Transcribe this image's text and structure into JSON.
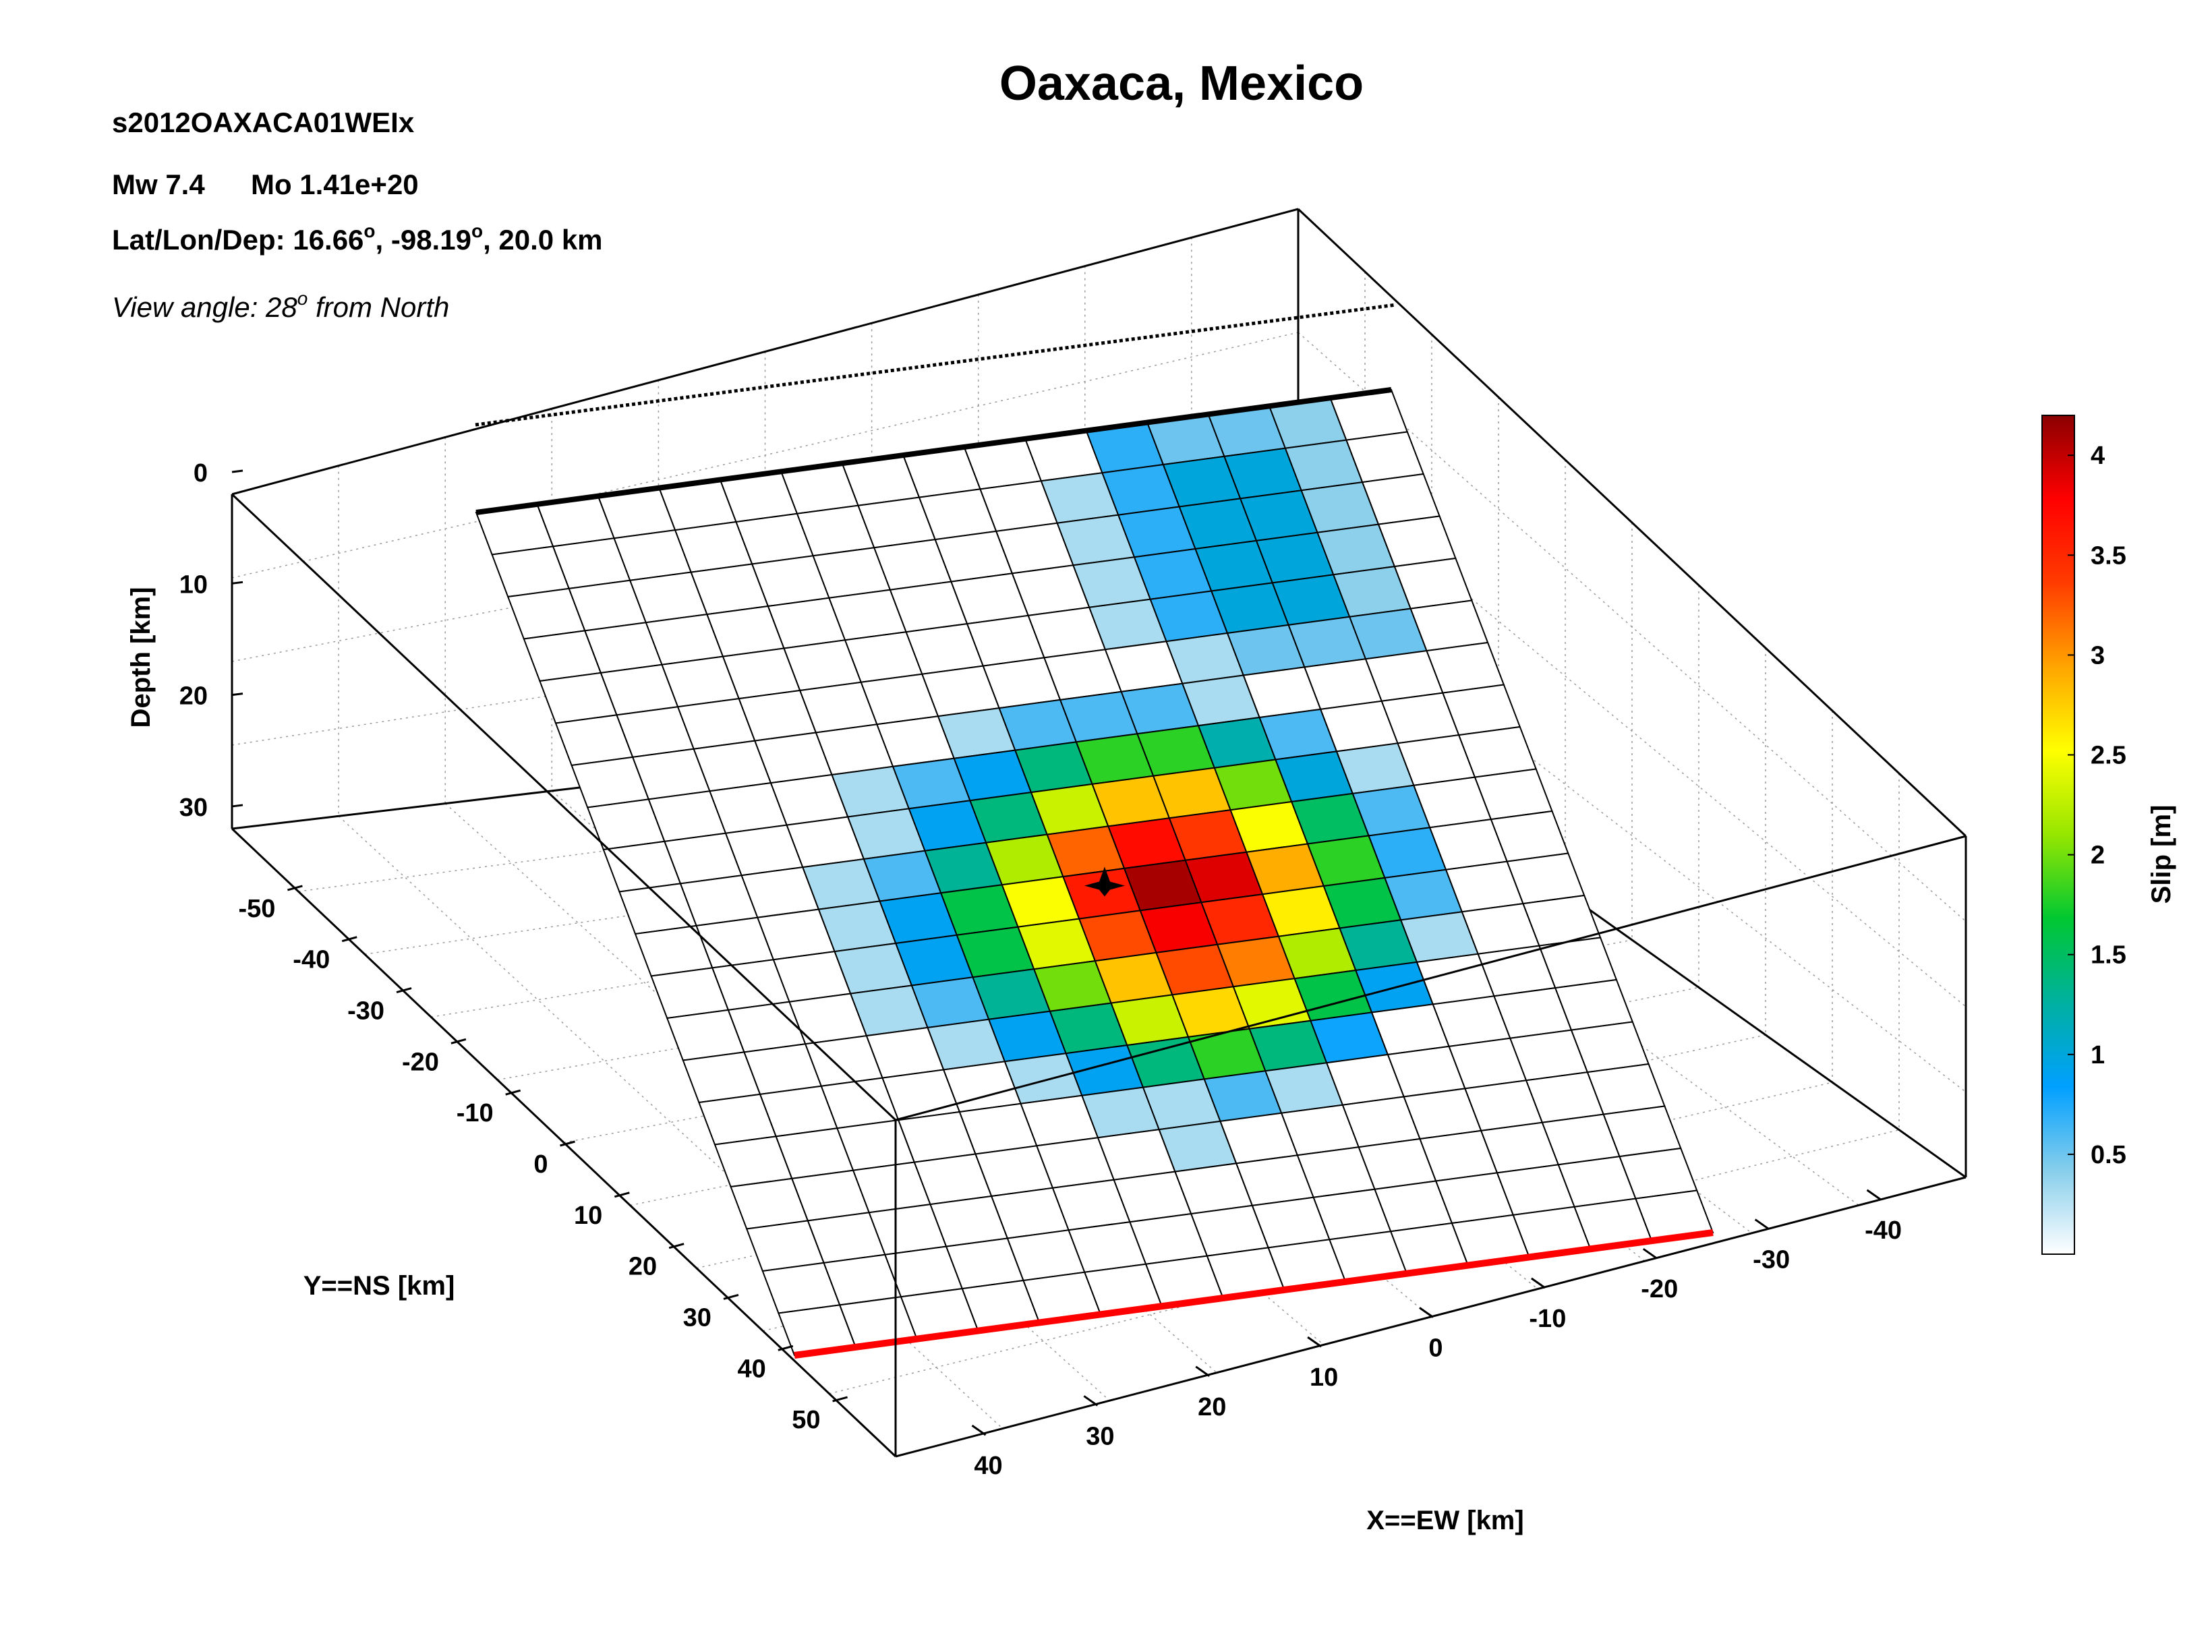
{
  "header": {
    "title": "Oaxaca, Mexico",
    "event_id": "s2012OAXACA01WEIx",
    "mw": "Mw 7.4",
    "mo": "Mo 1.41e+20",
    "location_prefix": "Lat/Lon/Dep: 16.66",
    "location_lon": ", -98.19",
    "location_dep": ", 20.0 km",
    "degree_sup": "o",
    "view_prefix": "View angle:  28",
    "view_suffix": " from North"
  },
  "colors": {
    "top_edge": "#000000",
    "bottom_edge": "#ff0000",
    "hypocenter": "#000000"
  },
  "chart_data": {
    "type": "heatmap",
    "title": "Oaxaca, Mexico",
    "axes": {
      "x": {
        "label": "X==EW [km]",
        "ticks": [
          "40",
          "30",
          "20",
          "10",
          "0",
          "-10",
          "-20",
          "-30",
          "-40"
        ]
      },
      "y": {
        "label": "Y==NS [km]",
        "ticks": [
          "-50",
          "-40",
          "-30",
          "-20",
          "-10",
          "0",
          "10",
          "20",
          "30",
          "40",
          "50"
        ]
      },
      "z": {
        "label": "Depth [km]",
        "ticks": [
          "0",
          "10",
          "20",
          "30"
        ]
      }
    },
    "colorbar": {
      "label": "Slip [m]",
      "range": [
        0,
        4.2
      ],
      "ticks": [
        "0.5",
        "1",
        "1.5",
        "2",
        "2.5",
        "3",
        "3.5",
        "4"
      ],
      "colormap": [
        "#ffffff",
        "#87ceeb",
        "#00a0ff",
        "#00b0a0",
        "#00c832",
        "#96e600",
        "#ffff00",
        "#ffa500",
        "#ff3c00",
        "#ff0000",
        "#8b0000"
      ]
    },
    "grid_size": {
      "strike_cells": 15,
      "dip_cells": 20
    },
    "slip_cells_m": [
      {
        "dip": 0,
        "strike": 10,
        "v": 0.7
      },
      {
        "dip": 0,
        "strike": 11,
        "v": 0.5
      },
      {
        "dip": 0,
        "strike": 12,
        "v": 0.5
      },
      {
        "dip": 0,
        "strike": 13,
        "v": 0.4
      },
      {
        "dip": 1,
        "strike": 9,
        "v": 0.3
      },
      {
        "dip": 1,
        "strike": 10,
        "v": 0.7
      },
      {
        "dip": 1,
        "strike": 11,
        "v": 1.0
      },
      {
        "dip": 1,
        "strike": 12,
        "v": 1.0
      },
      {
        "dip": 1,
        "strike": 13,
        "v": 0.4
      },
      {
        "dip": 2,
        "strike": 9,
        "v": 0.3
      },
      {
        "dip": 2,
        "strike": 10,
        "v": 0.7
      },
      {
        "dip": 2,
        "strike": 11,
        "v": 1.0
      },
      {
        "dip": 2,
        "strike": 12,
        "v": 1.0
      },
      {
        "dip": 2,
        "strike": 13,
        "v": 0.4
      },
      {
        "dip": 3,
        "strike": 9,
        "v": 0.3
      },
      {
        "dip": 3,
        "strike": 10,
        "v": 0.7
      },
      {
        "dip": 3,
        "strike": 11,
        "v": 1.0
      },
      {
        "dip": 3,
        "strike": 12,
        "v": 1.0
      },
      {
        "dip": 3,
        "strike": 13,
        "v": 0.4
      },
      {
        "dip": 4,
        "strike": 9,
        "v": 0.3
      },
      {
        "dip": 4,
        "strike": 10,
        "v": 0.7
      },
      {
        "dip": 4,
        "strike": 11,
        "v": 1.0
      },
      {
        "dip": 4,
        "strike": 12,
        "v": 1.0
      },
      {
        "dip": 4,
        "strike": 13,
        "v": 0.4
      },
      {
        "dip": 5,
        "strike": 10,
        "v": 0.3
      },
      {
        "dip": 5,
        "strike": 11,
        "v": 0.5
      },
      {
        "dip": 5,
        "strike": 12,
        "v": 0.5
      },
      {
        "dip": 5,
        "strike": 13,
        "v": 0.5
      },
      {
        "dip": 6,
        "strike": 6,
        "v": 0.3
      },
      {
        "dip": 6,
        "strike": 7,
        "v": 0.6
      },
      {
        "dip": 6,
        "strike": 8,
        "v": 0.6
      },
      {
        "dip": 6,
        "strike": 9,
        "v": 0.6
      },
      {
        "dip": 6,
        "strike": 10,
        "v": 0.3
      },
      {
        "dip": 7,
        "strike": 4,
        "v": 0.3
      },
      {
        "dip": 7,
        "strike": 5,
        "v": 0.6
      },
      {
        "dip": 7,
        "strike": 6,
        "v": 0.9
      },
      {
        "dip": 7,
        "strike": 7,
        "v": 1.4
      },
      {
        "dip": 7,
        "strike": 8,
        "v": 1.8
      },
      {
        "dip": 7,
        "strike": 9,
        "v": 1.8
      },
      {
        "dip": 7,
        "strike": 10,
        "v": 1.2
      },
      {
        "dip": 7,
        "strike": 11,
        "v": 0.6
      },
      {
        "dip": 8,
        "strike": 4,
        "v": 0.3
      },
      {
        "dip": 8,
        "strike": 5,
        "v": 0.9
      },
      {
        "dip": 8,
        "strike": 6,
        "v": 1.4
      },
      {
        "dip": 8,
        "strike": 7,
        "v": 2.3
      },
      {
        "dip": 8,
        "strike": 8,
        "v": 2.8
      },
      {
        "dip": 8,
        "strike": 9,
        "v": 2.8
      },
      {
        "dip": 8,
        "strike": 10,
        "v": 2.0
      },
      {
        "dip": 8,
        "strike": 11,
        "v": 1.0
      },
      {
        "dip": 8,
        "strike": 12,
        "v": 0.3
      },
      {
        "dip": 9,
        "strike": 3,
        "v": 0.3
      },
      {
        "dip": 9,
        "strike": 4,
        "v": 0.6
      },
      {
        "dip": 9,
        "strike": 5,
        "v": 1.3
      },
      {
        "dip": 9,
        "strike": 6,
        "v": 2.2
      },
      {
        "dip": 9,
        "strike": 7,
        "v": 3.2
      },
      {
        "dip": 9,
        "strike": 8,
        "v": 3.7
      },
      {
        "dip": 9,
        "strike": 9,
        "v": 3.4
      },
      {
        "dip": 9,
        "strike": 10,
        "v": 2.5
      },
      {
        "dip": 9,
        "strike": 11,
        "v": 1.5
      },
      {
        "dip": 9,
        "strike": 12,
        "v": 0.6
      },
      {
        "dip": 10,
        "strike": 3,
        "v": 0.3
      },
      {
        "dip": 10,
        "strike": 4,
        "v": 0.9
      },
      {
        "dip": 10,
        "strike": 5,
        "v": 1.6
      },
      {
        "dip": 10,
        "strike": 6,
        "v": 2.5
      },
      {
        "dip": 10,
        "strike": 7,
        "v": 3.6
      },
      {
        "dip": 10,
        "strike": 8,
        "v": 4.1
      },
      {
        "dip": 10,
        "strike": 9,
        "v": 3.9
      },
      {
        "dip": 10,
        "strike": 10,
        "v": 2.9
      },
      {
        "dip": 10,
        "strike": 11,
        "v": 1.8
      },
      {
        "dip": 10,
        "strike": 12,
        "v": 0.7
      },
      {
        "dip": 11,
        "strike": 3,
        "v": 0.3
      },
      {
        "dip": 11,
        "strike": 4,
        "v": 0.9
      },
      {
        "dip": 11,
        "strike": 5,
        "v": 1.6
      },
      {
        "dip": 11,
        "strike": 6,
        "v": 2.4
      },
      {
        "dip": 11,
        "strike": 7,
        "v": 3.3
      },
      {
        "dip": 11,
        "strike": 8,
        "v": 3.8
      },
      {
        "dip": 11,
        "strike": 9,
        "v": 3.5
      },
      {
        "dip": 11,
        "strike": 10,
        "v": 2.6
      },
      {
        "dip": 11,
        "strike": 11,
        "v": 1.6
      },
      {
        "dip": 11,
        "strike": 12,
        "v": 0.6
      },
      {
        "dip": 12,
        "strike": 3,
        "v": 0.3
      },
      {
        "dip": 12,
        "strike": 4,
        "v": 0.6
      },
      {
        "dip": 12,
        "strike": 5,
        "v": 1.3
      },
      {
        "dip": 12,
        "strike": 6,
        "v": 2.0
      },
      {
        "dip": 12,
        "strike": 7,
        "v": 2.8
      },
      {
        "dip": 12,
        "strike": 8,
        "v": 3.3
      },
      {
        "dip": 12,
        "strike": 9,
        "v": 3.1
      },
      {
        "dip": 12,
        "strike": 10,
        "v": 2.2
      },
      {
        "dip": 12,
        "strike": 11,
        "v": 1.3
      },
      {
        "dip": 12,
        "strike": 12,
        "v": 0.3
      },
      {
        "dip": 13,
        "strike": 4,
        "v": 0.3
      },
      {
        "dip": 13,
        "strike": 5,
        "v": 0.9
      },
      {
        "dip": 13,
        "strike": 6,
        "v": 1.4
      },
      {
        "dip": 13,
        "strike": 7,
        "v": 2.3
      },
      {
        "dip": 13,
        "strike": 8,
        "v": 2.7
      },
      {
        "dip": 13,
        "strike": 9,
        "v": 2.4
      },
      {
        "dip": 13,
        "strike": 10,
        "v": 1.6
      },
      {
        "dip": 13,
        "strike": 11,
        "v": 0.9
      },
      {
        "dip": 14,
        "strike": 5,
        "v": 0.3
      },
      {
        "dip": 14,
        "strike": 6,
        "v": 0.9
      },
      {
        "dip": 14,
        "strike": 7,
        "v": 1.4
      },
      {
        "dip": 14,
        "strike": 8,
        "v": 1.8
      },
      {
        "dip": 14,
        "strike": 9,
        "v": 1.4
      },
      {
        "dip": 14,
        "strike": 10,
        "v": 0.8
      },
      {
        "dip": 15,
        "strike": 6,
        "v": 0.3
      },
      {
        "dip": 15,
        "strike": 7,
        "v": 0.3
      },
      {
        "dip": 15,
        "strike": 8,
        "v": 0.6
      },
      {
        "dip": 15,
        "strike": 9,
        "v": 0.3
      },
      {
        "dip": 16,
        "strike": 7,
        "v": 0.3
      }
    ],
    "hypocenter": {
      "dip": 10.3,
      "strike": 7.6
    }
  }
}
